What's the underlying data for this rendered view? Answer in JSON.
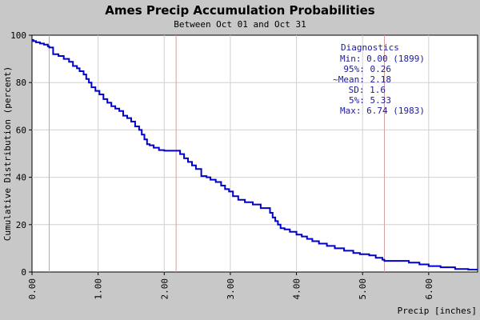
{
  "chart_data": {
    "type": "line",
    "title": "Ames Precip Accumulation Probabilities",
    "subtitle": "Between Oct 01 and Oct 31",
    "xlabel": "Precip [inches]",
    "ylabel": "Cumulative Distribution (percent)",
    "xlim": [
      0,
      6.74
    ],
    "ylim": [
      0,
      100
    ],
    "x_ticks": [
      0,
      1,
      2,
      3,
      4,
      5,
      6
    ],
    "x_tick_labels": [
      "0.00",
      "1.00",
      "2.00",
      "3.00",
      "4.00",
      "5.00",
      "6.00"
    ],
    "y_ticks": [
      0,
      20,
      40,
      60,
      80,
      100
    ],
    "y_tick_labels": [
      "0",
      "20",
      "40",
      "60",
      "80",
      "100"
    ],
    "grid": true,
    "line_color": "#0000cc",
    "marker_line_color": "#d4a0a0",
    "marker_lines_x": [
      0.26,
      2.18,
      5.33
    ],
    "series": [
      {
        "x": [
          0.0,
          0.02,
          0.06,
          0.12,
          0.18,
          0.24,
          0.26,
          0.32,
          0.4,
          0.48,
          0.56,
          0.62,
          0.68,
          0.72,
          0.78,
          0.82,
          0.86,
          0.9,
          0.96,
          1.02,
          1.08,
          1.14,
          1.2,
          1.26,
          1.32,
          1.38,
          1.44,
          1.5,
          1.56,
          1.62,
          1.66,
          1.7,
          1.74,
          1.78,
          1.84,
          1.92,
          2.0,
          2.08,
          2.18,
          2.24,
          2.3,
          2.36,
          2.42,
          2.48,
          2.56,
          2.64,
          2.7,
          2.78,
          2.86,
          2.92,
          2.98,
          3.04,
          3.12,
          3.22,
          3.34,
          3.46,
          3.56,
          3.6,
          3.64,
          3.68,
          3.72,
          3.76,
          3.82,
          3.9,
          4.0,
          4.08,
          4.16,
          4.24,
          4.34,
          4.46,
          4.58,
          4.72,
          4.86,
          4.96,
          5.1,
          5.2,
          5.3,
          5.33,
          5.5,
          5.7,
          5.86,
          6.0,
          6.18,
          6.4,
          6.6,
          6.74
        ],
        "y": [
          98.0,
          97.5,
          97.0,
          96.5,
          96.0,
          95.3,
          94.8,
          92.0,
          91.2,
          90.0,
          88.8,
          87.0,
          86.0,
          84.8,
          83.4,
          81.5,
          80.0,
          78.0,
          76.5,
          75.0,
          73.0,
          71.5,
          70.0,
          69.0,
          68.0,
          66.0,
          65.0,
          63.5,
          61.5,
          60.0,
          58.0,
          56.0,
          54.0,
          53.5,
          52.5,
          51.5,
          51.2,
          51.2,
          51.2,
          49.8,
          48.0,
          46.5,
          45.0,
          43.5,
          40.5,
          40.0,
          39.0,
          38.0,
          36.5,
          35.0,
          34.0,
          32.0,
          30.5,
          29.5,
          28.5,
          27.0,
          27.0,
          25.0,
          23.0,
          21.5,
          20.0,
          18.5,
          18.0,
          17.0,
          15.8,
          15.0,
          14.0,
          13.0,
          12.0,
          11.0,
          10.0,
          9.0,
          8.0,
          7.5,
          7.0,
          6.0,
          5.2,
          4.7,
          4.7,
          4.0,
          3.2,
          2.5,
          2.0,
          1.3,
          1.0,
          1.0
        ]
      }
    ],
    "diagnostics": {
      "heading": "Diagnostics",
      "lines": [
        "Min: 0.00 (1899)",
        "95%: 0.26",
        "~Mean: 2.18",
        "SD: 1.6",
        "5%: 5.33",
        "Max: 6.74 (1983)"
      ]
    }
  }
}
